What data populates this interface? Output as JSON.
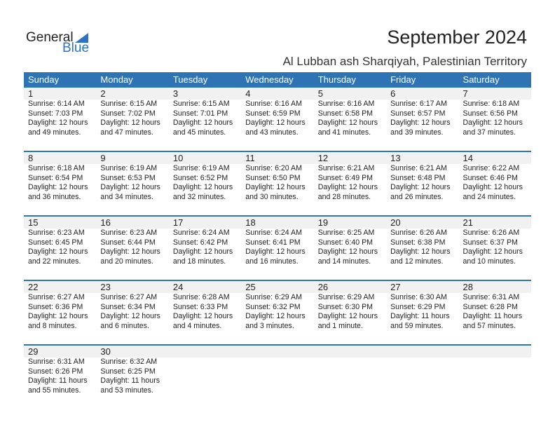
{
  "logo": {
    "general": "General",
    "blue": "Blue"
  },
  "title": "September 2024",
  "subtitle": "Al Lubban ash Sharqiyah, Palestinian Territory",
  "weekdays": [
    "Sunday",
    "Monday",
    "Tuesday",
    "Wednesday",
    "Thursday",
    "Friday",
    "Saturday"
  ],
  "colors": {
    "header": "#2e74b5",
    "band": "#f1f1f1",
    "brand": "#2a74c3"
  },
  "weeks": [
    [
      {
        "day": "1",
        "sunrise": "Sunrise: 6:14 AM",
        "sunset": "Sunset: 7:03 PM",
        "daylight": "Daylight: 12 hours",
        "minutes": "and 49 minutes."
      },
      {
        "day": "2",
        "sunrise": "Sunrise: 6:15 AM",
        "sunset": "Sunset: 7:02 PM",
        "daylight": "Daylight: 12 hours",
        "minutes": "and 47 minutes."
      },
      {
        "day": "3",
        "sunrise": "Sunrise: 6:15 AM",
        "sunset": "Sunset: 7:01 PM",
        "daylight": "Daylight: 12 hours",
        "minutes": "and 45 minutes."
      },
      {
        "day": "4",
        "sunrise": "Sunrise: 6:16 AM",
        "sunset": "Sunset: 6:59 PM",
        "daylight": "Daylight: 12 hours",
        "minutes": "and 43 minutes."
      },
      {
        "day": "5",
        "sunrise": "Sunrise: 6:16 AM",
        "sunset": "Sunset: 6:58 PM",
        "daylight": "Daylight: 12 hours",
        "minutes": "and 41 minutes."
      },
      {
        "day": "6",
        "sunrise": "Sunrise: 6:17 AM",
        "sunset": "Sunset: 6:57 PM",
        "daylight": "Daylight: 12 hours",
        "minutes": "and 39 minutes."
      },
      {
        "day": "7",
        "sunrise": "Sunrise: 6:18 AM",
        "sunset": "Sunset: 6:56 PM",
        "daylight": "Daylight: 12 hours",
        "minutes": "and 37 minutes."
      }
    ],
    [
      {
        "day": "8",
        "sunrise": "Sunrise: 6:18 AM",
        "sunset": "Sunset: 6:54 PM",
        "daylight": "Daylight: 12 hours",
        "minutes": "and 36 minutes."
      },
      {
        "day": "9",
        "sunrise": "Sunrise: 6:19 AM",
        "sunset": "Sunset: 6:53 PM",
        "daylight": "Daylight: 12 hours",
        "minutes": "and 34 minutes."
      },
      {
        "day": "10",
        "sunrise": "Sunrise: 6:19 AM",
        "sunset": "Sunset: 6:52 PM",
        "daylight": "Daylight: 12 hours",
        "minutes": "and 32 minutes."
      },
      {
        "day": "11",
        "sunrise": "Sunrise: 6:20 AM",
        "sunset": "Sunset: 6:50 PM",
        "daylight": "Daylight: 12 hours",
        "minutes": "and 30 minutes."
      },
      {
        "day": "12",
        "sunrise": "Sunrise: 6:21 AM",
        "sunset": "Sunset: 6:49 PM",
        "daylight": "Daylight: 12 hours",
        "minutes": "and 28 minutes."
      },
      {
        "day": "13",
        "sunrise": "Sunrise: 6:21 AM",
        "sunset": "Sunset: 6:48 PM",
        "daylight": "Daylight: 12 hours",
        "minutes": "and 26 minutes."
      },
      {
        "day": "14",
        "sunrise": "Sunrise: 6:22 AM",
        "sunset": "Sunset: 6:46 PM",
        "daylight": "Daylight: 12 hours",
        "minutes": "and 24 minutes."
      }
    ],
    [
      {
        "day": "15",
        "sunrise": "Sunrise: 6:23 AM",
        "sunset": "Sunset: 6:45 PM",
        "daylight": "Daylight: 12 hours",
        "minutes": "and 22 minutes."
      },
      {
        "day": "16",
        "sunrise": "Sunrise: 6:23 AM",
        "sunset": "Sunset: 6:44 PM",
        "daylight": "Daylight: 12 hours",
        "minutes": "and 20 minutes."
      },
      {
        "day": "17",
        "sunrise": "Sunrise: 6:24 AM",
        "sunset": "Sunset: 6:42 PM",
        "daylight": "Daylight: 12 hours",
        "minutes": "and 18 minutes."
      },
      {
        "day": "18",
        "sunrise": "Sunrise: 6:24 AM",
        "sunset": "Sunset: 6:41 PM",
        "daylight": "Daylight: 12 hours",
        "minutes": "and 16 minutes."
      },
      {
        "day": "19",
        "sunrise": "Sunrise: 6:25 AM",
        "sunset": "Sunset: 6:40 PM",
        "daylight": "Daylight: 12 hours",
        "minutes": "and 14 minutes."
      },
      {
        "day": "20",
        "sunrise": "Sunrise: 6:26 AM",
        "sunset": "Sunset: 6:38 PM",
        "daylight": "Daylight: 12 hours",
        "minutes": "and 12 minutes."
      },
      {
        "day": "21",
        "sunrise": "Sunrise: 6:26 AM",
        "sunset": "Sunset: 6:37 PM",
        "daylight": "Daylight: 12 hours",
        "minutes": "and 10 minutes."
      }
    ],
    [
      {
        "day": "22",
        "sunrise": "Sunrise: 6:27 AM",
        "sunset": "Sunset: 6:36 PM",
        "daylight": "Daylight: 12 hours",
        "minutes": "and 8 minutes."
      },
      {
        "day": "23",
        "sunrise": "Sunrise: 6:27 AM",
        "sunset": "Sunset: 6:34 PM",
        "daylight": "Daylight: 12 hours",
        "minutes": "and 6 minutes."
      },
      {
        "day": "24",
        "sunrise": "Sunrise: 6:28 AM",
        "sunset": "Sunset: 6:33 PM",
        "daylight": "Daylight: 12 hours",
        "minutes": "and 4 minutes."
      },
      {
        "day": "25",
        "sunrise": "Sunrise: 6:29 AM",
        "sunset": "Sunset: 6:32 PM",
        "daylight": "Daylight: 12 hours",
        "minutes": "and 3 minutes."
      },
      {
        "day": "26",
        "sunrise": "Sunrise: 6:29 AM",
        "sunset": "Sunset: 6:30 PM",
        "daylight": "Daylight: 12 hours",
        "minutes": "and 1 minute."
      },
      {
        "day": "27",
        "sunrise": "Sunrise: 6:30 AM",
        "sunset": "Sunset: 6:29 PM",
        "daylight": "Daylight: 11 hours",
        "minutes": "and 59 minutes."
      },
      {
        "day": "28",
        "sunrise": "Sunrise: 6:31 AM",
        "sunset": "Sunset: 6:28 PM",
        "daylight": "Daylight: 11 hours",
        "minutes": "and 57 minutes."
      }
    ],
    [
      {
        "day": "29",
        "sunrise": "Sunrise: 6:31 AM",
        "sunset": "Sunset: 6:26 PM",
        "daylight": "Daylight: 11 hours",
        "minutes": "and 55 minutes."
      },
      {
        "day": "30",
        "sunrise": "Sunrise: 6:32 AM",
        "sunset": "Sunset: 6:25 PM",
        "daylight": "Daylight: 11 hours",
        "minutes": "and 53 minutes."
      }
    ]
  ]
}
